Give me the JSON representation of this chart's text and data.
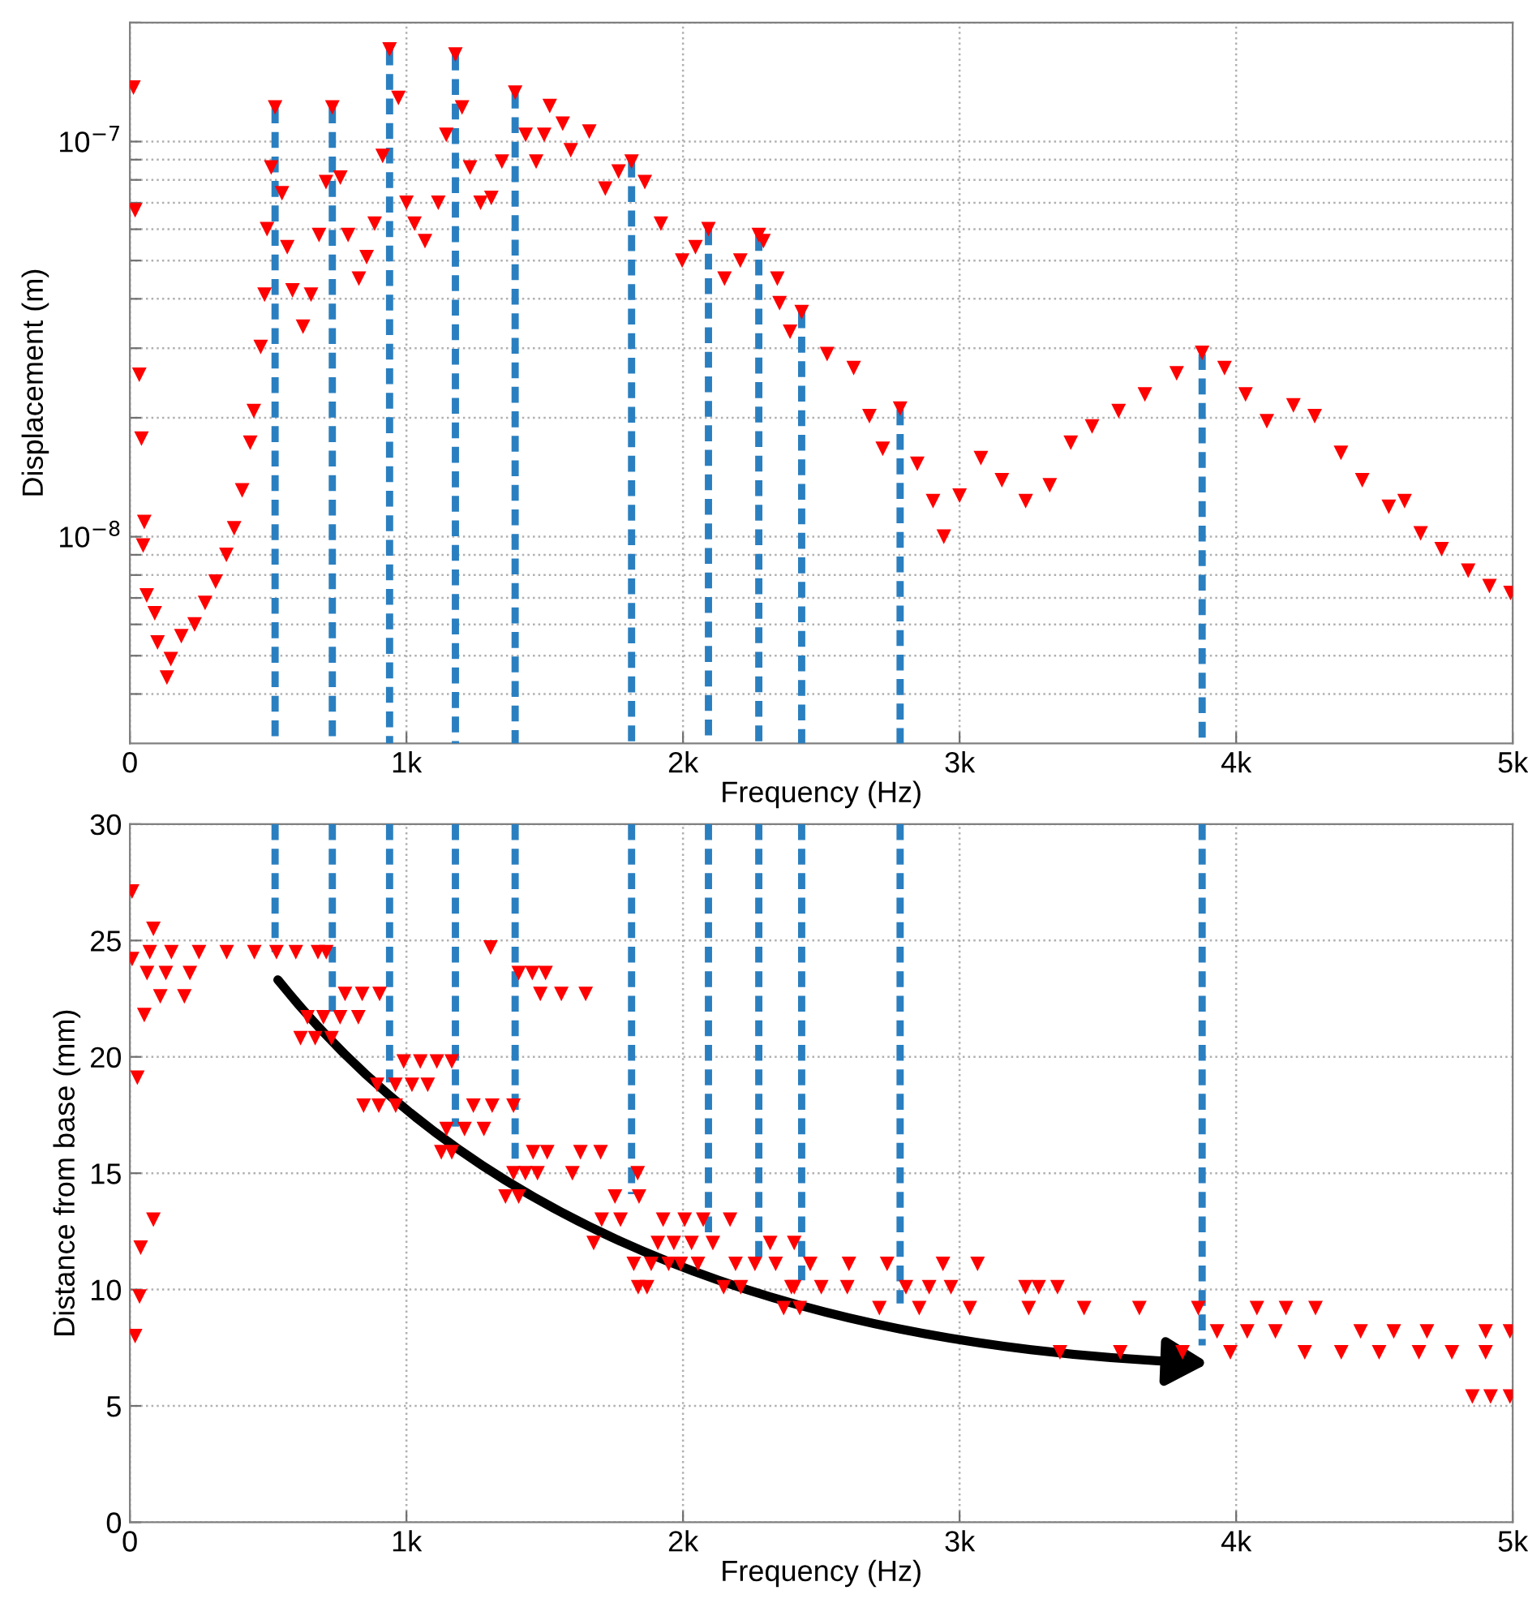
{
  "chart_data": [
    {
      "type": "scatter",
      "xlabel": "Frequency (Hz)",
      "ylabel": "Displacement (m)",
      "log": "y",
      "grid": true,
      "marker": "triangle",
      "xlim": [
        0,
        5000
      ],
      "xticks": [
        0,
        {
          "value": 1000,
          "label": "1k"
        },
        {
          "value": 2000,
          "label": "2k"
        },
        {
          "value": 3000,
          "label": "3k"
        },
        {
          "value": 4000,
          "label": "4k"
        },
        {
          "value": 5000,
          "label": "5k"
        }
      ],
      "ylim": [
        3e-09,
        2e-07
      ],
      "yticks": [
        {
          "value": 4e-09,
          "label": null
        },
        {
          "value": 5e-09,
          "label": null
        },
        {
          "value": 6e-09,
          "label": null
        },
        {
          "value": 7e-09,
          "label": null
        },
        {
          "value": 8e-09,
          "label": null
        },
        {
          "value": 9e-09,
          "label": null
        },
        {
          "value": 1e-08,
          "label": "10$^{−8}$"
        },
        {
          "value": 2e-08,
          "label": null
        },
        {
          "value": 3e-08,
          "label": null
        },
        {
          "value": 4e-08,
          "label": null
        },
        {
          "value": 5e-08,
          "label": null
        },
        {
          "value": 6e-08,
          "label": null
        },
        {
          "value": 7e-08,
          "label": null
        },
        {
          "value": 8e-08,
          "label": null
        },
        {
          "value": 9e-08,
          "label": null
        },
        {
          "value": 1e-07,
          "label": "10$^{−7}$"
        },
        {
          "value": 2e-07,
          "label": null
        }
      ],
      "series": [
        {
          "color": "#ff0000",
          "x": [
            13,
            19,
            34,
            42,
            52,
            48,
            61,
            90,
            100,
            134,
            148,
            186,
            234,
            272,
            310,
            349,
            377,
            406,
            435,
            448,
            473,
            487,
            496,
            511,
            525,
            550,
            569,
            588,
            626,
            655,
            684,
            709,
            732,
            761,
            789,
            828,
            856,
            885,
            914,
            939,
            971,
            1000,
            1029,
            1067,
            1115,
            1144,
            1177,
            1201,
            1230,
            1268,
            1307,
            1345,
            1393,
            1431,
            1469,
            1498,
            1518,
            1565,
            1594,
            1661,
            1719,
            1767,
            1814,
            1862,
            1920,
            1997,
            2045,
            2092,
            2150,
            2207,
            2274,
            2291,
            2341,
            2349,
            2387,
            2429,
            2521,
            2617,
            2674,
            2722,
            2785,
            2847,
            2904,
            2943,
            3000,
            3077,
            3153,
            3239,
            3326,
            3402,
            3479,
            3575,
            3670,
            3785,
            3877,
            3958,
            4034,
            4111,
            4207,
            4284,
            4379,
            4456,
            4552,
            4609,
            4667,
            4743,
            4839,
            4916,
            4992
          ],
          "values": [
            1.37e-07,
            6.7e-08,
            2.57e-08,
            1.77e-08,
            1.09e-08,
            9.5e-09,
            7.1e-09,
            6.4e-09,
            5.4e-09,
            4.4e-09,
            4.9e-09,
            5.6e-09,
            6e-09,
            6.8e-09,
            7.7e-09,
            9e-09,
            1.05e-08,
            1.31e-08,
            1.73e-08,
            2.08e-08,
            3.02e-08,
            4.1e-08,
            6e-08,
            8.6e-08,
            1.22e-07,
            7.4e-08,
            5.4e-08,
            4.2e-08,
            3.4e-08,
            4.1e-08,
            5.8e-08,
            7.9e-08,
            1.22e-07,
            8.1e-08,
            5.8e-08,
            4.5e-08,
            5.1e-08,
            6.2e-08,
            9.2e-08,
            1.71e-07,
            1.29e-07,
            7e-08,
            6.2e-08,
            5.6e-08,
            7e-08,
            1.04e-07,
            1.66e-07,
            1.22e-07,
            8.6e-08,
            7e-08,
            7.2e-08,
            8.9e-08,
            1.33e-07,
            1.04e-07,
            8.9e-08,
            1.04e-07,
            1.23e-07,
            1.11e-07,
            9.5e-08,
            1.06e-07,
            7.6e-08,
            8.4e-08,
            8.9e-08,
            7.9e-08,
            6.2e-08,
            5e-08,
            5.4e-08,
            6e-08,
            4.5e-08,
            5e-08,
            5.8e-08,
            5.6e-08,
            4.5e-08,
            3.9e-08,
            3.3e-08,
            3.7e-08,
            2.9e-08,
            2.67e-08,
            2.02e-08,
            1.67e-08,
            2.11e-08,
            1.53e-08,
            1.23e-08,
            1e-08,
            1.27e-08,
            1.58e-08,
            1.39e-08,
            1.23e-08,
            1.35e-08,
            1.73e-08,
            1.9e-08,
            2.08e-08,
            2.29e-08,
            2.59e-08,
            2.92e-08,
            2.67e-08,
            2.29e-08,
            1.96e-08,
            2.15e-08,
            2.02e-08,
            1.63e-08,
            1.39e-08,
            1.19e-08,
            1.23e-08,
            1.02e-08,
            9.3e-09,
            8.2e-09,
            7.5e-09,
            7.2e-09
          ]
        },
        {
          "type": "line",
          "color": "#2a7fc0",
          "line_style": "dashed",
          "marker": "none",
          "x": [
            525,
            525
          ],
          "values": [
            1.22e-07,
            3e-09
          ]
        },
        {
          "type": "line",
          "color": "#2a7fc0",
          "line_style": "dashed",
          "marker": "none",
          "x": [
            732,
            732
          ],
          "values": [
            1.22e-07,
            3e-09
          ]
        },
        {
          "type": "line",
          "color": "#2a7fc0",
          "line_style": "dashed",
          "marker": "none",
          "x": [
            939,
            939
          ],
          "values": [
            1.71e-07,
            3e-09
          ]
        },
        {
          "type": "line",
          "color": "#2a7fc0",
          "line_style": "dashed",
          "marker": "none",
          "x": [
            1177,
            1177
          ],
          "values": [
            1.66e-07,
            3e-09
          ]
        },
        {
          "type": "line",
          "color": "#2a7fc0",
          "line_style": "dashed",
          "marker": "none",
          "x": [
            1393,
            1393
          ],
          "values": [
            1.33e-07,
            3e-09
          ]
        },
        {
          "type": "line",
          "color": "#2a7fc0",
          "line_style": "dashed",
          "marker": "none",
          "x": [
            1814,
            1814
          ],
          "values": [
            8.9e-08,
            3e-09
          ]
        },
        {
          "type": "line",
          "color": "#2a7fc0",
          "line_style": "dashed",
          "marker": "none",
          "x": [
            2092,
            2092
          ],
          "values": [
            6e-08,
            3e-09
          ]
        },
        {
          "type": "line",
          "color": "#2a7fc0",
          "line_style": "dashed",
          "marker": "none",
          "x": [
            2274,
            2274
          ],
          "values": [
            5.8e-08,
            3e-09
          ]
        },
        {
          "type": "line",
          "color": "#2a7fc0",
          "line_style": "dashed",
          "marker": "none",
          "x": [
            2429,
            2429
          ],
          "values": [
            3.7e-08,
            3e-09
          ]
        },
        {
          "type": "line",
          "color": "#2a7fc0",
          "line_style": "dashed",
          "marker": "none",
          "x": [
            2785,
            2785
          ],
          "values": [
            2.1e-08,
            3e-09
          ]
        },
        {
          "type": "line",
          "color": "#2a7fc0",
          "line_style": "dashed",
          "marker": "none",
          "x": [
            3877,
            3877
          ],
          "values": [
            2.9e-08,
            3e-09
          ]
        }
      ]
    },
    {
      "type": "scatter",
      "xlabel": "Frequency (Hz)",
      "ylabel": "Distance from base (mm)",
      "grid": true,
      "marker": "triangle",
      "xlim": [
        0,
        5000
      ],
      "xticks": [
        0,
        {
          "value": 1000,
          "label": "1k"
        },
        {
          "value": 2000,
          "label": "2k"
        },
        {
          "value": 3000,
          "label": "3k"
        },
        {
          "value": 4000,
          "label": "4k"
        },
        {
          "value": 5000,
          "label": "5k"
        }
      ],
      "ylim": [
        0,
        30
      ],
      "yticks": [
        0,
        5,
        10,
        15,
        20,
        25,
        30
      ],
      "series": [
        {
          "color": "#ff0000",
          "x": [
            8,
            8,
            27,
            39,
            35,
            19,
            52,
            85,
            85,
            110,
            197,
            62,
            130,
            217,
            72,
            150,
            250,
            350,
            450,
            530,
            600,
            680,
            710,
            642,
            700,
            760,
            826,
            617,
            670,
            729,
            778,
            840,
            903,
            894,
            960,
            1020,
            1077,
            845,
            900,
            961,
            990,
            1050,
            1110,
            1164,
            1145,
            1210,
            1280,
            1126,
            1164,
            1242,
            1310,
            1387,
            1304,
            1387,
            1430,
            1474,
            1358,
            1406,
            1406,
            1455,
            1503,
            1484,
            1560,
            1648,
            1458,
            1509,
            1629,
            1702,
            1600,
            1677,
            1706,
            1774,
            1754,
            1841,
            1836,
            1822,
            1885,
            1948,
            1838,
            1870,
            1928,
            2006,
            1909,
            1967,
            2031,
            2108,
            1992,
            2054,
            2073,
            2170,
            2190,
            2260,
            2335,
            2147,
            2209,
            2315,
            2402,
            2364,
            2422,
            2402,
            2460,
            2600,
            2738,
            2392,
            2500,
            2594,
            2806,
            2890,
            2969,
            3238,
            3286,
            3354,
            2710,
            2854,
            3037,
            3250,
            3450,
            3650,
            3863,
            2940,
            3065,
            3931,
            4040,
            4142,
            4450,
            4570,
            4690,
            4902,
            4990,
            4075,
            4180,
            4287,
            3806,
            3979,
            4248,
            4380,
            4517,
            4661,
            4780,
            4902,
            3363,
            3581,
            4854,
            4920,
            4990
          ],
          "values": [
            27.1,
            24.2,
            19.1,
            11.8,
            9.7,
            8.0,
            21.8,
            25.5,
            13.0,
            22.6,
            22.6,
            23.6,
            23.6,
            23.6,
            24.5,
            24.5,
            24.5,
            24.5,
            24.5,
            24.5,
            24.5,
            24.5,
            24.5,
            21.7,
            21.7,
            21.7,
            21.7,
            20.8,
            20.8,
            20.8,
            22.7,
            22.7,
            22.7,
            18.8,
            18.8,
            18.8,
            18.8,
            17.9,
            17.9,
            17.9,
            19.8,
            19.8,
            19.8,
            19.8,
            16.9,
            16.9,
            16.9,
            15.9,
            15.9,
            17.9,
            17.9,
            17.9,
            24.7,
            15.0,
            15.0,
            15.0,
            14.0,
            14.0,
            23.6,
            23.6,
            23.6,
            22.7,
            22.7,
            22.7,
            15.9,
            15.9,
            15.9,
            15.9,
            15.0,
            12.0,
            13.0,
            13.0,
            14.0,
            14.0,
            15.0,
            11.1,
            11.1,
            11.1,
            10.1,
            10.1,
            13.0,
            13.0,
            12.0,
            12.0,
            12.0,
            12.0,
            11.1,
            11.1,
            13.0,
            13.0,
            11.1,
            11.1,
            11.1,
            10.1,
            10.1,
            12.0,
            12.0,
            9.2,
            9.2,
            10.1,
            11.1,
            11.1,
            11.1,
            10.1,
            10.1,
            10.1,
            10.1,
            10.1,
            10.1,
            10.1,
            10.1,
            10.1,
            9.2,
            9.2,
            9.2,
            9.2,
            9.2,
            9.2,
            9.2,
            11.1,
            11.1,
            8.2,
            8.2,
            8.2,
            8.2,
            8.2,
            8.2,
            8.2,
            8.2,
            9.2,
            9.2,
            9.2,
            7.3,
            7.3,
            7.3,
            7.3,
            7.3,
            7.3,
            7.3,
            7.3,
            7.3,
            7.3,
            5.4,
            5.4,
            5.4
          ]
        },
        {
          "type": "line",
          "color": "#2a7fc0",
          "line_style": "dashed",
          "marker": "none",
          "x": [
            525,
            525
          ],
          "values": [
            30,
            24.5
          ]
        },
        {
          "type": "line",
          "color": "#2a7fc0",
          "line_style": "dashed",
          "marker": "none",
          "x": [
            732,
            732
          ],
          "values": [
            30,
            21.7
          ]
        },
        {
          "type": "line",
          "color": "#2a7fc0",
          "line_style": "dashed",
          "marker": "none",
          "x": [
            939,
            939
          ],
          "values": [
            30,
            18.9
          ]
        },
        {
          "type": "line",
          "color": "#2a7fc0",
          "line_style": "dashed",
          "marker": "none",
          "x": [
            1177,
            1177
          ],
          "values": [
            30,
            17.0
          ]
        },
        {
          "type": "line",
          "color": "#2a7fc0",
          "line_style": "dashed",
          "marker": "none",
          "x": [
            1393,
            1393
          ],
          "values": [
            30,
            15.2
          ]
        },
        {
          "type": "line",
          "color": "#2a7fc0",
          "line_style": "dashed",
          "marker": "none",
          "x": [
            1814,
            1814
          ],
          "values": [
            30,
            14.1
          ]
        },
        {
          "type": "line",
          "color": "#2a7fc0",
          "line_style": "dashed",
          "marker": "none",
          "x": [
            2092,
            2092
          ],
          "values": [
            30,
            12.4
          ]
        },
        {
          "type": "line",
          "color": "#2a7fc0",
          "line_style": "dashed",
          "marker": "none",
          "x": [
            2274,
            2274
          ],
          "values": [
            30,
            11.2
          ]
        },
        {
          "type": "line",
          "color": "#2a7fc0",
          "line_style": "dashed",
          "marker": "none",
          "x": [
            2429,
            2429
          ],
          "values": [
            30,
            10.4
          ]
        },
        {
          "type": "line",
          "color": "#2a7fc0",
          "line_style": "dashed",
          "marker": "none",
          "x": [
            2785,
            2785
          ],
          "values": [
            30,
            9.4
          ]
        },
        {
          "type": "line",
          "color": "#2a7fc0",
          "line_style": "dashed",
          "marker": "none",
          "x": [
            3877,
            3877
          ],
          "values": [
            30,
            7.6
          ]
        }
      ]
    }
  ]
}
